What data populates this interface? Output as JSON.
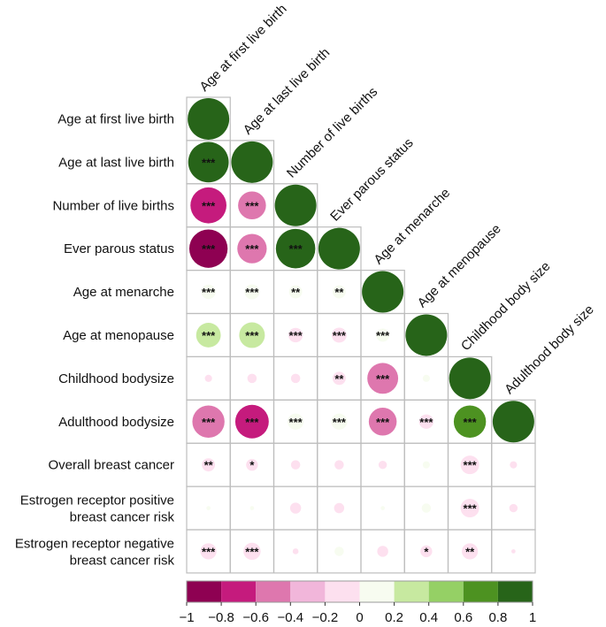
{
  "chart_data": {
    "type": "heatmap",
    "title": "",
    "columns": [
      "Age at first live birth",
      "Age at last live birth",
      "Number of live births",
      "Ever parous status",
      "Age at menarche",
      "Age at menopause",
      "Childhood body size",
      "Adulthood body size"
    ],
    "rows": [
      "Age at first live birth",
      "Age at last live birth",
      "Number of live births",
      "Ever parous status",
      "Age at menarche",
      "Age at menopause",
      "Childhood bodysize",
      "Adulthood bodysize",
      "Overall breast cancer",
      "Estrogen receptor positive\nbreast cancer risk",
      "Estrogen receptor negative\nbreast cancer risk"
    ],
    "values": [
      [
        1,
        null,
        null,
        null,
        null,
        null,
        null,
        null
      ],
      [
        0.95,
        1,
        null,
        null,
        null,
        null,
        null,
        null
      ],
      [
        -0.75,
        -0.45,
        1,
        null,
        null,
        null,
        null,
        null
      ],
      [
        -0.85,
        -0.5,
        0.9,
        1,
        null,
        null,
        null,
        null
      ],
      [
        0.12,
        0.13,
        0.1,
        0.1,
        1,
        null,
        null,
        null
      ],
      [
        0.35,
        0.38,
        -0.12,
        -0.13,
        0.1,
        1,
        null,
        null
      ],
      [
        -0.03,
        -0.05,
        -0.05,
        -0.1,
        -0.55,
        0.03,
        1,
        null
      ],
      [
        -0.6,
        -0.65,
        0.15,
        0.15,
        -0.45,
        -0.12,
        0.6,
        1
      ],
      [
        -0.1,
        -0.08,
        -0.05,
        -0.05,
        -0.04,
        0.03,
        -0.2,
        -0.03
      ],
      [
        0.01,
        0.01,
        -0.07,
        -0.06,
        0.01,
        0.05,
        -0.2,
        -0.04
      ],
      [
        -0.15,
        -0.17,
        -0.02,
        0.05,
        -0.07,
        -0.08,
        -0.15,
        -0.01
      ]
    ],
    "significance": [
      [
        "",
        "",
        "",
        "",
        "",
        "",
        "",
        ""
      ],
      [
        "***",
        "",
        "",
        "",
        "",
        "",
        "",
        ""
      ],
      [
        "***",
        "***",
        "",
        "",
        "",
        "",
        "",
        ""
      ],
      [
        "***",
        "***",
        "***",
        "",
        "",
        "",
        "",
        ""
      ],
      [
        "***",
        "***",
        "**",
        "**",
        "",
        "",
        "",
        ""
      ],
      [
        "***",
        "***",
        "***",
        "***",
        "***",
        "",
        "",
        ""
      ],
      [
        "",
        "",
        "",
        "**",
        "***",
        "",
        "",
        ""
      ],
      [
        "***",
        "***",
        "***",
        "***",
        "***",
        "***",
        "***",
        ""
      ],
      [
        "**",
        "*",
        "",
        "",
        "",
        "",
        "***",
        ""
      ],
      [
        "",
        "",
        "",
        "",
        "",
        "",
        "***",
        ""
      ],
      [
        "***",
        "***",
        "",
        "",
        "",
        "*",
        "**",
        ""
      ]
    ],
    "colorbar": {
      "range": [
        -1,
        1
      ],
      "ticks": [
        "−1",
        "−0.8",
        "−0.6",
        "−0.4",
        "−0.2",
        "0",
        "0.2",
        "0.4",
        "0.6",
        "0.8",
        "1"
      ],
      "colors": [
        "#8e0152",
        "#c51b7d",
        "#de77ae",
        "#f1b6da",
        "#fde0ef",
        "#f7fcf0",
        "#c7e9a0",
        "#95d065",
        "#4d9221",
        "#276419"
      ]
    }
  }
}
